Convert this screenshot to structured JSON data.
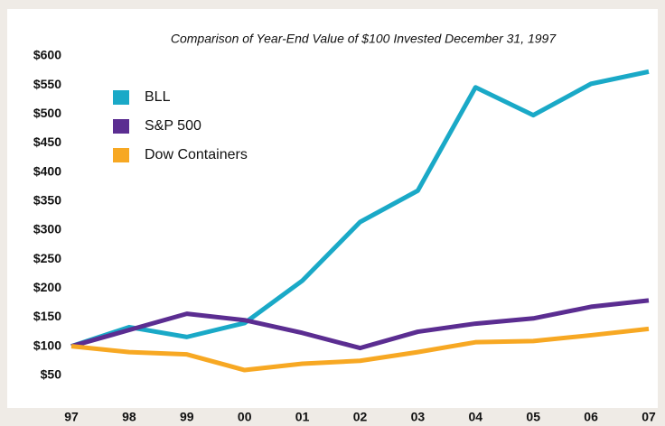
{
  "chart_data": {
    "type": "line",
    "title": "Comparison of Year-End Value of $100 Invested December 31, 1997",
    "categories": [
      "97",
      "98",
      "99",
      "00",
      "01",
      "02",
      "03",
      "04",
      "05",
      "06",
      "07"
    ],
    "series": [
      {
        "name": "BLL",
        "color": "#1aa9c7",
        "values": [
          100,
          133,
          116,
          140,
          213,
          314,
          368,
          546,
          498,
          552,
          573
        ]
      },
      {
        "name": "S&P 500",
        "color": "#5b2d91",
        "values": [
          100,
          128,
          156,
          145,
          123,
          97,
          125,
          139,
          148,
          168,
          179
        ]
      },
      {
        "name": "Dow Containers",
        "color": "#f7a823",
        "values": [
          100,
          90,
          86,
          59,
          70,
          75,
          90,
          107,
          109,
          119,
          130
        ]
      }
    ],
    "ylim": [
      0,
      600
    ],
    "yticks": [
      {
        "value": 50,
        "label": "$50"
      },
      {
        "value": 100,
        "label": "$100"
      },
      {
        "value": 150,
        "label": "$150"
      },
      {
        "value": 200,
        "label": "$200"
      },
      {
        "value": 250,
        "label": "$250"
      },
      {
        "value": 300,
        "label": "$300"
      },
      {
        "value": 350,
        "label": "$350"
      },
      {
        "value": 400,
        "label": "$400"
      },
      {
        "value": 450,
        "label": "$450"
      },
      {
        "value": 500,
        "label": "$500"
      },
      {
        "value": 550,
        "label": "$550"
      },
      {
        "value": 600,
        "label": "$600"
      }
    ],
    "grid": false,
    "legend": "upper left"
  }
}
